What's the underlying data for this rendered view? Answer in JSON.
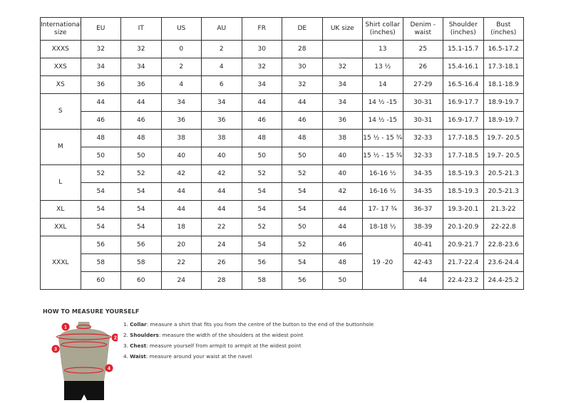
{
  "headers": [
    "International size",
    "EU",
    "IT",
    "US",
    "AU",
    "FR",
    "DE",
    "UK size",
    "Shirt collar (inches)",
    "Denim - waist",
    "Shoulder (inches)",
    "Bust (inches)"
  ],
  "groups": [
    {
      "size": "XXXS",
      "rows": [
        [
          "32",
          "32",
          "0",
          "2",
          "30",
          "28",
          "",
          "13",
          "25",
          "15.1-15.7",
          "16.5-17.2"
        ]
      ]
    },
    {
      "size": "XXS",
      "rows": [
        [
          "34",
          "34",
          "2",
          "4",
          "32",
          "30",
          "32",
          "13 ½",
          "26",
          "15.4-16.1",
          "17.3-18.1"
        ]
      ]
    },
    {
      "size": "XS",
      "rows": [
        [
          "36",
          "36",
          "4",
          "6",
          "34",
          "32",
          "34",
          "14",
          "27-29",
          "16.5-16.4",
          "18.1-18.9"
        ]
      ]
    },
    {
      "size": "S",
      "rows": [
        [
          "44",
          "44",
          "34",
          "34",
          "44",
          "44",
          "34",
          "14 ½ -15",
          "30-31",
          "16.9-17.7",
          "18.9-19.7"
        ],
        [
          "46",
          "46",
          "36",
          "36",
          "46",
          "46",
          "36",
          "14 ½ -15",
          "30-31",
          "16.9-17.7",
          "18.9-19.7"
        ]
      ]
    },
    {
      "size": "M",
      "rows": [
        [
          "48",
          "48",
          "38",
          "38",
          "48",
          "48",
          "38",
          "15 ½ - 15 ¾",
          "32-33",
          "17.7-18.5",
          "19.7- 20.5"
        ],
        [
          "50",
          "50",
          "40",
          "40",
          "50",
          "50",
          "40",
          "15 ½ - 15 ¾",
          "32-33",
          "17.7-18.5",
          "19.7- 20.5"
        ]
      ]
    },
    {
      "size": "L",
      "rows": [
        [
          "52",
          "52",
          "42",
          "42",
          "52",
          "52",
          "40",
          "16-16 ½",
          "34-35",
          "18.5-19.3",
          "20.5-21.3"
        ],
        [
          "54",
          "54",
          "44",
          "44",
          "54",
          "54",
          "42",
          "16-16 ½",
          "34-35",
          "18.5-19.3",
          "20.5-21.3"
        ]
      ]
    },
    {
      "size": "XL",
      "rows": [
        [
          "54",
          "54",
          "44",
          "44",
          "54",
          "54",
          "44",
          "17- 17 ¾",
          "36-37",
          "19.3-20.1",
          "21.3-22"
        ]
      ]
    },
    {
      "size": "XXL",
      "rows": [
        [
          "54",
          "54",
          "18",
          "22",
          "52",
          "50",
          "44",
          "18-18 ½",
          "38-39",
          "20.1-20.9",
          "22-22.8"
        ]
      ]
    },
    {
      "size": "XXXL",
      "collar": "19 -20",
      "rows": [
        [
          "56",
          "56",
          "20",
          "24",
          "54",
          "52",
          "46",
          "40-41",
          "20.9-21.7",
          "22.8-23.6"
        ],
        [
          "58",
          "58",
          "22",
          "26",
          "56",
          "54",
          "48",
          "42-43",
          "21.7-22.4",
          "23.6-24.4"
        ],
        [
          "60",
          "60",
          "24",
          "28",
          "58",
          "56",
          "50",
          "44",
          "22.4-23.2",
          "24.4-25.2"
        ]
      ]
    }
  ],
  "measure": {
    "title": "HOW TO MEASURE YOURSELF",
    "steps": [
      {
        "num": "1.",
        "term": "Collar",
        "text": ": measure a shirt that fits you from the centre of the button to the end of the buttonhole"
      },
      {
        "num": "2.",
        "term": "Shoulders",
        "text": ": measure the width of the shoulders at the widest point"
      },
      {
        "num": "3.",
        "term": "Chest",
        "text": ": measure yourself from armpit to armpit at the widest point"
      },
      {
        "num": "4.",
        "term": "Waist",
        "text": ": measure around your waist at the navel"
      }
    ],
    "markers": [
      "1",
      "2",
      "3",
      "4"
    ]
  },
  "colors": {
    "accent": "#e0202e",
    "torso": "#a9a692",
    "shorts": "#111111"
  }
}
